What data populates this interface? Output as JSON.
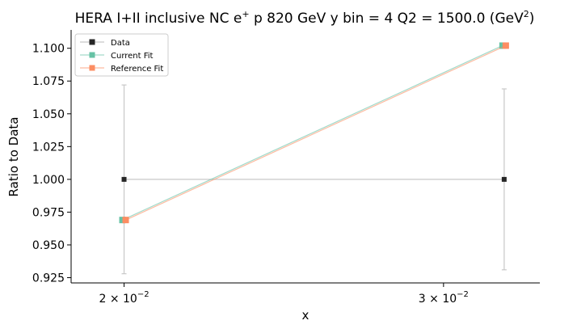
{
  "chart_data": {
    "type": "line",
    "title": "HERA I+II inclusive NC e⁺ p 820 GeV y bin = 4 Q2 = 1500.0 (GeV²)",
    "title_parts": {
      "prefix": "HERA I+II inclusive NC e",
      "sup1": "+",
      "middle": "p 820 GeV y bin = 4 Q2 = 1500.0 (GeV",
      "sup2": "2",
      "suffix": ")"
    },
    "xlabel": "x",
    "ylabel": "Ratio to Data",
    "x_scale": "log",
    "xlim": [
      0.0187,
      0.0339
    ],
    "ylim": [
      0.921,
      1.114
    ],
    "x_ticks": [
      {
        "value": 0.02,
        "mantissa": "2",
        "base": "10",
        "exp": "−2"
      },
      {
        "value": 0.03,
        "mantissa": "3",
        "base": "10",
        "exp": "−2"
      }
    ],
    "y_ticks": [
      "0.925",
      "0.950",
      "0.975",
      "1.000",
      "1.025",
      "1.050",
      "1.075",
      "1.100"
    ],
    "grid": false,
    "legend_position": "top-left",
    "series": [
      {
        "name": "Data",
        "color": "#262626",
        "marker": "square",
        "x": [
          0.02,
          0.0324
        ],
        "y": [
          1.0,
          1.0
        ],
        "yerr": [
          0.072,
          0.069
        ]
      },
      {
        "name": "Current Fit",
        "color": "#66c2a5",
        "marker": "square",
        "x": [
          0.02,
          0.0324
        ],
        "y": [
          0.969,
          1.102
        ]
      },
      {
        "name": "Reference Fit",
        "color": "#fc8d62",
        "marker": "square",
        "x": [
          0.02,
          0.0324
        ],
        "y": [
          0.969,
          1.102
        ]
      }
    ]
  }
}
